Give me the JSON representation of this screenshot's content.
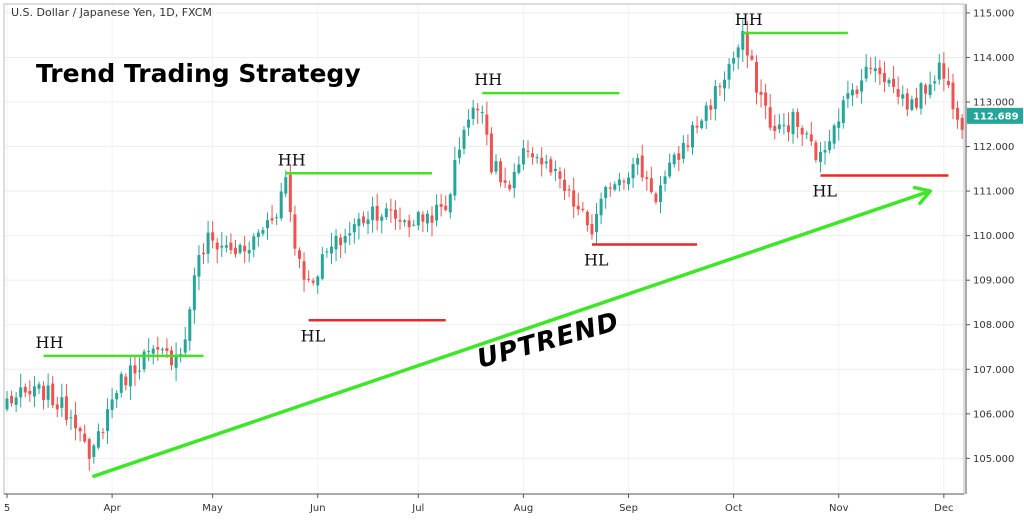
{
  "chart_data": {
    "type": "candlestick",
    "symbol_label": "U.S. Dollar / Japanese Yen, 1D, FXCM",
    "title": "Trend Trading Strategy",
    "trend_label": "UPTREND",
    "last_price": "112.689",
    "ylim": [
      104.2,
      115.2
    ],
    "y_ticks": [
      105.0,
      106.0,
      107.0,
      108.0,
      109.0,
      110.0,
      111.0,
      112.0,
      113.0,
      114.0,
      115.0
    ],
    "y_tick_labels": [
      "105.000",
      "106.000",
      "107.000",
      "108.000",
      "109.000",
      "110.000",
      "111.000",
      "112.000",
      "113.000",
      "114.000",
      "115.000"
    ],
    "x_tick_labels": [
      "5",
      "Apr",
      "May",
      "Jun",
      "Jul",
      "Aug",
      "Sep",
      "Oct",
      "Nov",
      "Dec"
    ],
    "x_tick_positions": [
      0,
      23,
      45,
      68,
      90,
      113,
      136,
      159,
      182,
      205
    ],
    "n_bars": 210,
    "anchors": [
      [
        0,
        106.3
      ],
      [
        8,
        106.5
      ],
      [
        16,
        105.8
      ],
      [
        18,
        104.8
      ],
      [
        20,
        105.5
      ],
      [
        24,
        106.6
      ],
      [
        30,
        107.3
      ],
      [
        36,
        107.3
      ],
      [
        39,
        107.6
      ],
      [
        41,
        109.2
      ],
      [
        44,
        109.9
      ],
      [
        52,
        109.6
      ],
      [
        59,
        110.6
      ],
      [
        61,
        111.3
      ],
      [
        63,
        109.8
      ],
      [
        66,
        108.9
      ],
      [
        70,
        109.6
      ],
      [
        80,
        110.6
      ],
      [
        88,
        110.3
      ],
      [
        96,
        110.6
      ],
      [
        100,
        112.5
      ],
      [
        104,
        113.0
      ],
      [
        106,
        111.6
      ],
      [
        110,
        111.0
      ],
      [
        114,
        112.0
      ],
      [
        120,
        111.3
      ],
      [
        126,
        110.4
      ],
      [
        128,
        110.1
      ],
      [
        132,
        111.2
      ],
      [
        138,
        111.6
      ],
      [
        142,
        110.9
      ],
      [
        148,
        112.0
      ],
      [
        154,
        113.0
      ],
      [
        158,
        113.8
      ],
      [
        161,
        114.4
      ],
      [
        164,
        113.4
      ],
      [
        168,
        112.3
      ],
      [
        172,
        112.6
      ],
      [
        176,
        112.0
      ],
      [
        178,
        111.7
      ],
      [
        181,
        112.6
      ],
      [
        186,
        113.4
      ],
      [
        190,
        113.9
      ],
      [
        194,
        113.3
      ],
      [
        198,
        112.9
      ],
      [
        204,
        113.8
      ],
      [
        208,
        112.8
      ],
      [
        209,
        112.6
      ]
    ],
    "levels": [
      {
        "label": "HH",
        "kind": "higher-high",
        "price": 107.3,
        "from": 8,
        "to": 43
      },
      {
        "label": "HH",
        "kind": "higher-high",
        "price": 111.4,
        "from": 61,
        "to": 93
      },
      {
        "label": "HH",
        "kind": "higher-high",
        "price": 113.2,
        "from": 104,
        "to": 134
      },
      {
        "label": "HH",
        "kind": "higher-high",
        "price": 114.55,
        "from": 161,
        "to": 184
      },
      {
        "label": "HL",
        "kind": "higher-low",
        "price": 108.1,
        "from": 66,
        "to": 96
      },
      {
        "label": "HL",
        "kind": "higher-low",
        "price": 109.8,
        "from": 128,
        "to": 151
      },
      {
        "label": "HL",
        "kind": "higher-low",
        "price": 111.35,
        "from": 178,
        "to": 206
      }
    ],
    "trendline": {
      "from": [
        19,
        104.6
      ],
      "to": [
        202,
        111.0
      ]
    },
    "colors": {
      "up": "#26a69a",
      "down": "#ef5350",
      "hh_line": "#45e025",
      "hl_line": "#e8282b",
      "trend": "#3ee628",
      "last_price_bg": "#26a69a"
    }
  }
}
